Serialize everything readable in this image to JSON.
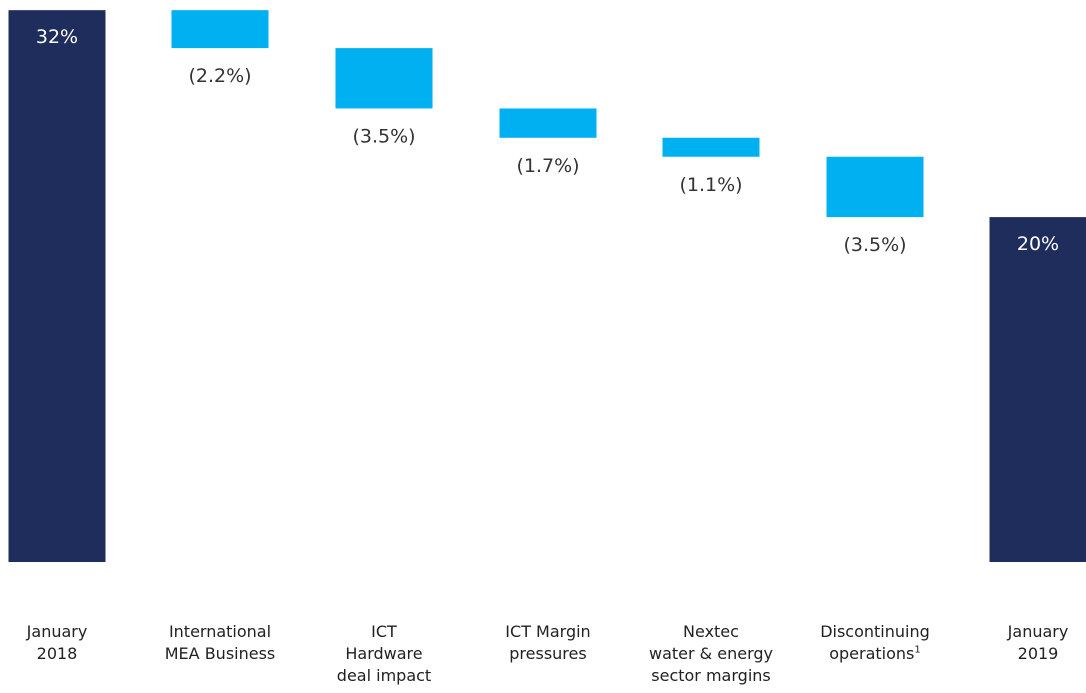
{
  "chart_data": {
    "type": "bar",
    "subtype": "waterfall",
    "title": "",
    "xlabel": "",
    "ylabel": "",
    "grid": false,
    "legend": "none",
    "ylim": [
      0,
      32.3
    ],
    "categories": [
      "January\n2018",
      "International\nMEA Business",
      "ICT\nHardware\ndeal impact",
      "ICT Margin\npressures",
      "Nextec\nwater & energy\nsector margins",
      "Discontinuing\noperations",
      "January\n2019"
    ],
    "footnote_marks": [
      "",
      "",
      "",
      "",
      "",
      "1",
      ""
    ],
    "values": [
      32,
      -2.2,
      -3.5,
      -1.7,
      -1.1,
      -3.5,
      20
    ],
    "kinds": [
      "total",
      "delta",
      "delta",
      "delta",
      "delta",
      "delta",
      "total"
    ],
    "data_labels": [
      "32%",
      "(2.2%)",
      "(3.5%)",
      "(1.7%)",
      "(1.1%)",
      "(3.5%)",
      "20%"
    ],
    "colors": {
      "total": "#1f2d5c",
      "delta": "#00b0f0",
      "label_light": "#ffffff",
      "label_dark": "#333333"
    }
  }
}
